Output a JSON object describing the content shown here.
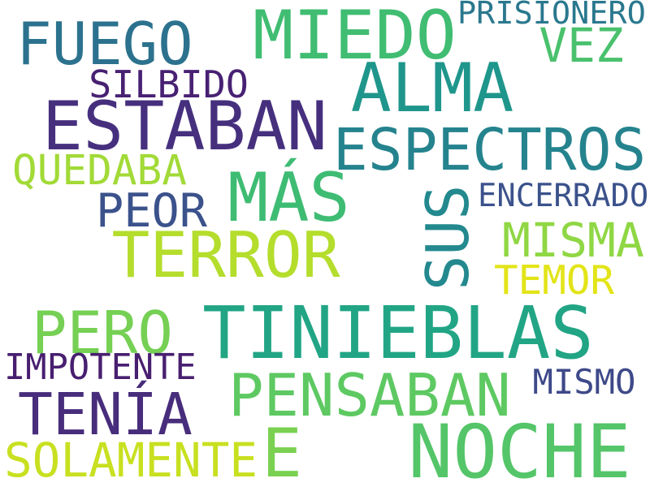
{
  "words": [
    {
      "text": "TINIEBLAS",
      "color": "#21a585",
      "rotation": 0
    },
    {
      "text": "ESTABAN",
      "color": "#46307e",
      "rotation": 0
    },
    {
      "text": "NOCHE",
      "color": "#54c568",
      "rotation": 0
    },
    {
      "text": "TERROR",
      "color": "#b4dd2c",
      "rotation": 0
    },
    {
      "text": "ALMA",
      "color": "#1f968b",
      "rotation": 0
    },
    {
      "text": "MIEDO",
      "color": "#40bd72",
      "rotation": 0
    },
    {
      "text": "ESPECTROS",
      "color": "#25838e",
      "rotation": 0
    },
    {
      "text": "MÁS",
      "color": "#3fbc73",
      "rotation": 0
    },
    {
      "text": "FUEGO",
      "color": "#2c728e",
      "rotation": 0
    },
    {
      "text": "TENÍA",
      "color": "#472d7b",
      "rotation": 0
    },
    {
      "text": "PENSABAN",
      "color": "#5ec962",
      "rotation": 0
    },
    {
      "text": "E",
      "color": "#7ad151",
      "rotation": 0
    },
    {
      "text": "SUS",
      "color": "#23898e",
      "rotation": -90
    },
    {
      "text": "PERO",
      "color": "#75d054",
      "rotation": 0
    },
    {
      "text": "SOLAMENTE",
      "color": "#c8e020",
      "rotation": 0
    },
    {
      "text": "MISMA",
      "color": "#8fd744",
      "rotation": 0
    },
    {
      "text": "PEOR",
      "color": "#3b528b",
      "rotation": 0
    },
    {
      "text": "VEZ",
      "color": "#4ac16d",
      "rotation": 0
    },
    {
      "text": "QUEDABA",
      "color": "#a2da37",
      "rotation": 0
    },
    {
      "text": "TEMOR",
      "color": "#e2e418",
      "rotation": 0
    },
    {
      "text": "SILBIDO",
      "color": "#482173",
      "rotation": 0
    },
    {
      "text": "IMPOTENTE",
      "color": "#481f70",
      "rotation": 0
    },
    {
      "text": "ENCERRADO",
      "color": "#3b528b",
      "rotation": 0
    },
    {
      "text": "MISMO",
      "color": "#3e4989",
      "rotation": 0
    },
    {
      "text": "PRISIONERO",
      "color": "#2a788e",
      "rotation": 0
    }
  ]
}
